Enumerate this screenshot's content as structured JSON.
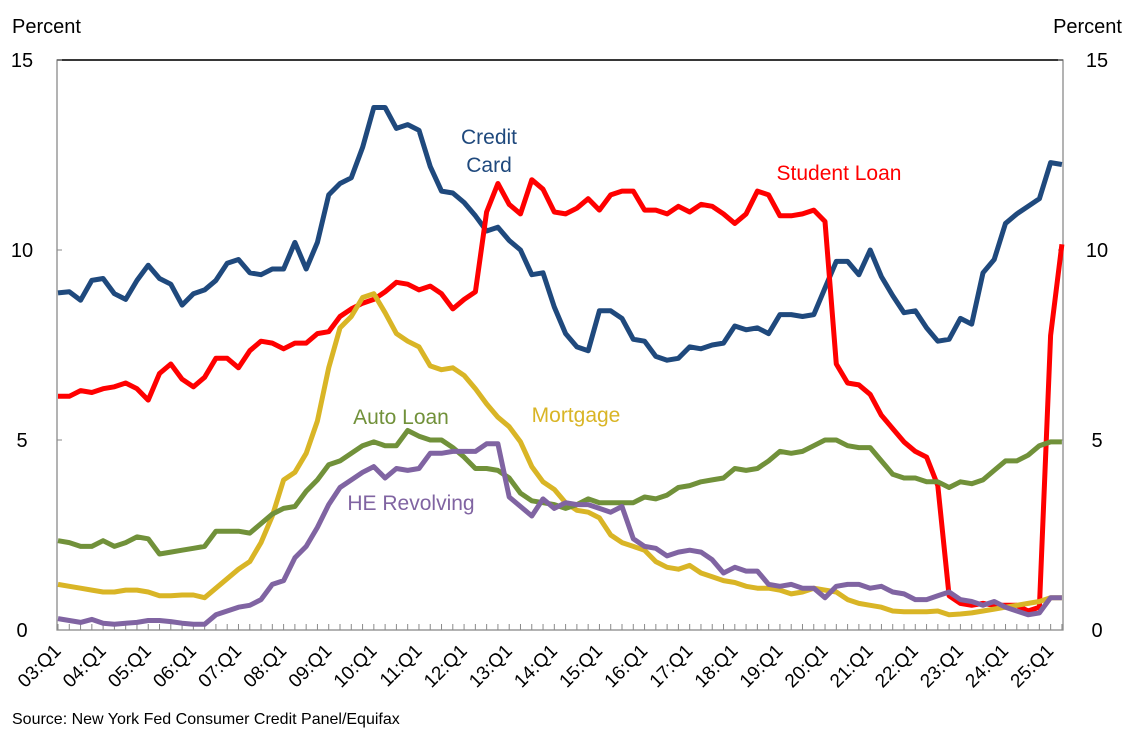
{
  "chart_data": {
    "type": "line",
    "title": "",
    "ylabel_left": "Percent",
    "ylabel_right": "Percent",
    "ylim": [
      0,
      15
    ],
    "yticks": [
      0,
      5,
      10,
      15
    ],
    "grid": false,
    "legend": "inline labels",
    "categories": [
      "03:Q1",
      "03:Q2",
      "03:Q3",
      "03:Q4",
      "04:Q1",
      "04:Q2",
      "04:Q3",
      "04:Q4",
      "05:Q1",
      "05:Q2",
      "05:Q3",
      "05:Q4",
      "06:Q1",
      "06:Q2",
      "06:Q3",
      "06:Q4",
      "07:Q1",
      "07:Q2",
      "07:Q3",
      "07:Q4",
      "08:Q1",
      "08:Q2",
      "08:Q3",
      "08:Q4",
      "09:Q1",
      "09:Q2",
      "09:Q3",
      "09:Q4",
      "10:Q1",
      "10:Q2",
      "10:Q3",
      "10:Q4",
      "11:Q1",
      "11:Q2",
      "11:Q3",
      "11:Q4",
      "12:Q1",
      "12:Q2",
      "12:Q3",
      "12:Q4",
      "13:Q1",
      "13:Q2",
      "13:Q3",
      "13:Q4",
      "14:Q1",
      "14:Q2",
      "14:Q3",
      "14:Q4",
      "15:Q1",
      "15:Q2",
      "15:Q3",
      "15:Q4",
      "16:Q1",
      "16:Q2",
      "16:Q3",
      "16:Q4",
      "17:Q1",
      "17:Q2",
      "17:Q3",
      "17:Q4",
      "18:Q1",
      "18:Q2",
      "18:Q3",
      "18:Q4",
      "19:Q1",
      "19:Q2",
      "19:Q3",
      "19:Q4",
      "20:Q1",
      "20:Q2",
      "20:Q3",
      "20:Q4",
      "21:Q1",
      "21:Q2",
      "21:Q3",
      "21:Q4",
      "22:Q1",
      "22:Q2",
      "22:Q3",
      "22:Q4",
      "23:Q1",
      "23:Q2",
      "23:Q3",
      "23:Q4",
      "24:Q1",
      "24:Q2",
      "24:Q3",
      "24:Q4",
      "25:Q1",
      "25:Q2"
    ],
    "tick_labels": [
      "03:Q1",
      "04:Q1",
      "05:Q1",
      "06:Q1",
      "07:Q1",
      "08:Q1",
      "09:Q1",
      "10:Q1",
      "11:Q1",
      "12:Q1",
      "13:Q1",
      "14:Q1",
      "15:Q1",
      "16:Q1",
      "17:Q1",
      "18:Q1",
      "19:Q1",
      "20:Q1",
      "21:Q1",
      "22:Q1",
      "23:Q1",
      "24:Q1",
      "25:Q1"
    ],
    "series": [
      {
        "name": "Credit Card",
        "label_lines": [
          "Credit",
          "Card"
        ],
        "color": "#1F497D",
        "values": [
          8.87,
          8.9,
          8.68,
          9.2,
          9.25,
          8.85,
          8.7,
          9.2,
          9.6,
          9.25,
          9.1,
          8.55,
          8.85,
          8.95,
          9.2,
          9.65,
          9.75,
          9.4,
          9.35,
          9.5,
          9.5,
          10.2,
          9.5,
          10.2,
          11.45,
          11.75,
          11.9,
          12.7,
          13.75,
          13.75,
          13.2,
          13.3,
          13.15,
          12.2,
          11.55,
          11.5,
          11.25,
          10.9,
          10.5,
          10.6,
          10.25,
          10.0,
          9.35,
          9.4,
          8.5,
          7.8,
          7.45,
          7.35,
          8.4,
          8.4,
          8.2,
          7.65,
          7.6,
          7.2,
          7.1,
          7.15,
          7.45,
          7.4,
          7.5,
          7.55,
          8.0,
          7.9,
          7.95,
          7.8,
          8.3,
          8.3,
          8.25,
          8.3,
          9.0,
          9.7,
          9.7,
          9.35,
          10.0,
          9.3,
          8.8,
          8.35,
          8.4,
          7.95,
          7.6,
          7.65,
          8.2,
          8.05,
          9.4,
          9.75,
          10.7,
          10.95,
          11.15,
          11.35,
          12.3,
          12.25
        ]
      },
      {
        "name": "Student Loan",
        "label_lines": [
          "Student Loan"
        ],
        "color": "#FF0000",
        "values": [
          6.15,
          6.15,
          6.3,
          6.25,
          6.35,
          6.4,
          6.5,
          6.35,
          6.05,
          6.75,
          7.0,
          6.6,
          6.4,
          6.65,
          7.15,
          7.15,
          6.9,
          7.35,
          7.6,
          7.55,
          7.4,
          7.55,
          7.55,
          7.8,
          7.85,
          8.25,
          8.45,
          8.6,
          8.7,
          8.9,
          9.15,
          9.1,
          8.95,
          9.05,
          8.85,
          8.45,
          8.7,
          8.9,
          11.0,
          11.75,
          11.2,
          10.95,
          11.85,
          11.6,
          11.0,
          10.95,
          11.1,
          11.35,
          11.05,
          11.45,
          11.55,
          11.55,
          11.05,
          11.05,
          10.95,
          11.15,
          11.0,
          11.2,
          11.15,
          10.95,
          10.7,
          10.95,
          11.55,
          11.45,
          10.9,
          10.9,
          10.95,
          11.05,
          10.75,
          7.0,
          6.5,
          6.45,
          6.2,
          5.65,
          5.3,
          4.95,
          4.7,
          4.55,
          3.8,
          0.9,
          0.7,
          0.65,
          0.7,
          0.65,
          0.65,
          0.65,
          0.5,
          0.6,
          7.75,
          10.15
        ]
      },
      {
        "name": "Mortgage",
        "label_lines": [
          "Mortgage"
        ],
        "color": "#D9B526",
        "values": [
          1.2,
          1.15,
          1.1,
          1.05,
          1.0,
          1.0,
          1.05,
          1.05,
          1.0,
          0.9,
          0.9,
          0.92,
          0.92,
          0.85,
          1.1,
          1.35,
          1.6,
          1.8,
          2.3,
          3.0,
          3.95,
          4.15,
          4.65,
          5.5,
          6.9,
          7.95,
          8.25,
          8.75,
          8.85,
          8.35,
          7.8,
          7.6,
          7.45,
          6.95,
          6.85,
          6.9,
          6.7,
          6.35,
          5.95,
          5.6,
          5.35,
          4.95,
          4.3,
          3.9,
          3.7,
          3.35,
          3.15,
          3.1,
          2.95,
          2.5,
          2.3,
          2.2,
          2.1,
          1.8,
          1.65,
          1.6,
          1.7,
          1.5,
          1.4,
          1.3,
          1.25,
          1.15,
          1.1,
          1.1,
          1.05,
          0.95,
          1.0,
          1.1,
          1.05,
          1.0,
          0.8,
          0.7,
          0.65,
          0.6,
          0.5,
          0.48,
          0.48,
          0.48,
          0.5,
          0.4,
          0.42,
          0.45,
          0.5,
          0.55,
          0.6,
          0.65,
          0.7,
          0.75,
          0.85,
          0.85
        ]
      },
      {
        "name": "Auto Loan",
        "label_lines": [
          "Auto Loan"
        ],
        "color": "#71913A",
        "values": [
          2.35,
          2.3,
          2.2,
          2.2,
          2.35,
          2.2,
          2.3,
          2.45,
          2.4,
          2.0,
          2.05,
          2.1,
          2.15,
          2.2,
          2.6,
          2.6,
          2.6,
          2.55,
          2.8,
          3.05,
          3.2,
          3.25,
          3.65,
          3.95,
          4.35,
          4.45,
          4.65,
          4.85,
          4.95,
          4.85,
          4.85,
          5.25,
          5.1,
          5.0,
          5.0,
          4.8,
          4.55,
          4.25,
          4.25,
          4.2,
          4.0,
          3.6,
          3.4,
          3.35,
          3.3,
          3.2,
          3.3,
          3.45,
          3.35,
          3.35,
          3.35,
          3.35,
          3.5,
          3.45,
          3.55,
          3.75,
          3.8,
          3.9,
          3.95,
          4.0,
          4.25,
          4.2,
          4.25,
          4.45,
          4.7,
          4.65,
          4.7,
          4.85,
          5.0,
          5.0,
          4.85,
          4.8,
          4.8,
          4.45,
          4.1,
          4.0,
          4.0,
          3.9,
          3.9,
          3.75,
          3.9,
          3.85,
          3.95,
          4.2,
          4.45,
          4.45,
          4.6,
          4.85,
          4.95,
          4.95
        ]
      },
      {
        "name": "HE Revolving",
        "label_lines": [
          "HE Revolving"
        ],
        "color": "#8064A2",
        "values": [
          0.3,
          0.25,
          0.2,
          0.28,
          0.18,
          0.15,
          0.18,
          0.2,
          0.25,
          0.25,
          0.22,
          0.18,
          0.15,
          0.15,
          0.4,
          0.5,
          0.6,
          0.65,
          0.8,
          1.2,
          1.3,
          1.9,
          2.2,
          2.7,
          3.3,
          3.75,
          3.95,
          4.15,
          4.3,
          4.0,
          4.25,
          4.2,
          4.25,
          4.65,
          4.65,
          4.7,
          4.7,
          4.7,
          4.9,
          4.9,
          3.5,
          3.25,
          3.0,
          3.45,
          3.2,
          3.35,
          3.3,
          3.3,
          3.2,
          3.1,
          3.25,
          2.4,
          2.2,
          2.15,
          1.95,
          2.05,
          2.1,
          2.05,
          1.85,
          1.5,
          1.65,
          1.55,
          1.55,
          1.2,
          1.15,
          1.2,
          1.1,
          1.1,
          0.85,
          1.15,
          1.2,
          1.2,
          1.1,
          1.15,
          1.0,
          0.95,
          0.8,
          0.8,
          0.9,
          1.0,
          0.8,
          0.75,
          0.65,
          0.75,
          0.6,
          0.5,
          0.4,
          0.45,
          0.85,
          0.85
        ]
      }
    ],
    "source": "Source: New York Fed Consumer Credit Panel/Equifax"
  }
}
